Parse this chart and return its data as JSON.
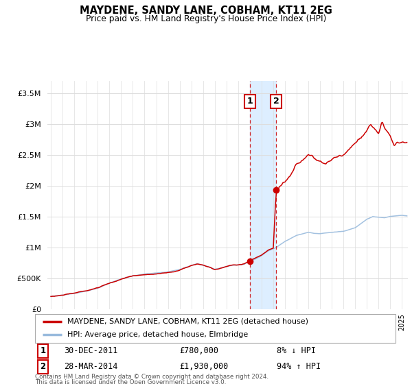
{
  "title": "MAYDENE, SANDY LANE, COBHAM, KT11 2EG",
  "subtitle": "Price paid vs. HM Land Registry's House Price Index (HPI)",
  "legend_line1": "MAYDENE, SANDY LANE, COBHAM, KT11 2EG (detached house)",
  "legend_line2": "HPI: Average price, detached house, Elmbridge",
  "transaction1_date": "30-DEC-2011",
  "transaction1_price": "£780,000",
  "transaction1_hpi": "8% ↓ HPI",
  "transaction1_year": 2011.99,
  "transaction1_value": 780000,
  "transaction2_date": "28-MAR-2014",
  "transaction2_price": "£1,930,000",
  "transaction2_hpi": "94% ↑ HPI",
  "transaction2_year": 2014.24,
  "transaction2_value": 1930000,
  "footnote1": "Contains HM Land Registry data © Crown copyright and database right 2024.",
  "footnote2": "This data is licensed under the Open Government Licence v3.0.",
  "red_color": "#cc0000",
  "blue_color": "#99bbdd",
  "highlight_color": "#ddeeff",
  "marker_color": "#cc0000",
  "ylim_max": 3700000,
  "xlim_min": 1994.7,
  "xlim_max": 2025.5
}
